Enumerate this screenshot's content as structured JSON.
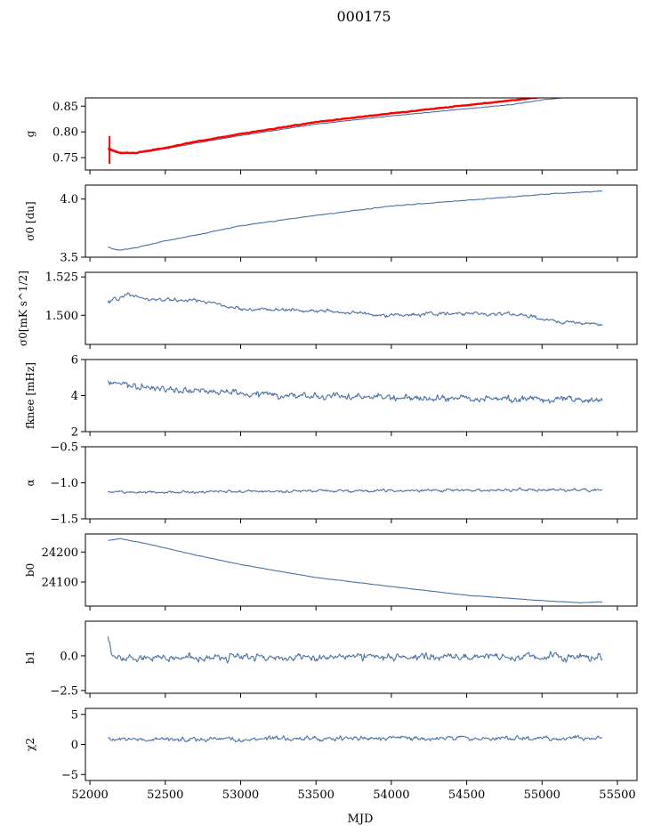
{
  "figure": {
    "title": "000175",
    "xlabel": "MJD"
  },
  "colors": {
    "series": "#4c72a4",
    "fit": "#ff0000",
    "frame": "#000000"
  },
  "chart_data": [
    {
      "type": "line",
      "ylabel": "g",
      "xlim": [
        51970,
        55630
      ],
      "ylim": [
        0.726,
        0.866
      ],
      "yticks": [
        0.75,
        0.8,
        0.85
      ],
      "ytick_labels": [
        "0.75",
        "0.80",
        "0.85"
      ],
      "series": [
        {
          "kind": "data",
          "x": [
            52120,
            52200,
            52300,
            52500,
            52700,
            53000,
            53500,
            54000,
            54500,
            54800,
            55000,
            55200
          ],
          "y": [
            0.765,
            0.758,
            0.758,
            0.767,
            0.778,
            0.793,
            0.815,
            0.831,
            0.845,
            0.853,
            0.862,
            0.868
          ],
          "noise": 0.001
        },
        {
          "kind": "fit",
          "x": [
            52120,
            52200,
            52300,
            52500,
            52700,
            53000,
            53500,
            54000,
            54500,
            54800,
            55000
          ],
          "y": [
            0.768,
            0.759,
            0.759,
            0.769,
            0.781,
            0.796,
            0.819,
            0.836,
            0.852,
            0.861,
            0.868
          ],
          "noise": 0.0012,
          "spike": {
            "x": 52130,
            "low": 0.738,
            "high": 0.792
          }
        }
      ]
    },
    {
      "type": "line",
      "ylabel": "σ0 [du]",
      "xlim": [
        51970,
        55630
      ],
      "ylim": [
        3.5,
        4.12
      ],
      "yticks": [
        3.5,
        4.0
      ],
      "ytick_labels": [
        "3.5",
        "4.0"
      ],
      "series": [
        {
          "kind": "data",
          "x": [
            52120,
            52150,
            52200,
            52300,
            52500,
            52700,
            53000,
            53500,
            54000,
            54500,
            55000,
            55400
          ],
          "y": [
            3.59,
            3.57,
            3.56,
            3.58,
            3.64,
            3.69,
            3.77,
            3.86,
            3.94,
            3.99,
            4.04,
            4.07
          ],
          "noise": 0.006
        }
      ]
    },
    {
      "type": "line",
      "ylabel": "σ0[mK s^1/2]",
      "xlim": [
        51970,
        55630
      ],
      "ylim": [
        1.481,
        1.528
      ],
      "yticks": [
        1.5,
        1.525
      ],
      "ytick_labels": [
        "1.500",
        "1.525"
      ],
      "series": [
        {
          "kind": "data",
          "x": [
            52120,
            52250,
            52400,
            52700,
            53000,
            53500,
            54000,
            54400,
            54800,
            55100,
            55400
          ],
          "y": [
            1.508,
            1.514,
            1.51,
            1.51,
            1.504,
            1.503,
            1.5,
            1.501,
            1.501,
            1.496,
            1.494
          ],
          "noise": 0.0022
        }
      ]
    },
    {
      "type": "line",
      "ylabel": "fknee [mHz]",
      "xlim": [
        51970,
        55630
      ],
      "ylim": [
        2,
        6
      ],
      "yticks": [
        2,
        4,
        6
      ],
      "ytick_labels": [
        "2",
        "4",
        "6"
      ],
      "series": [
        {
          "kind": "data",
          "x": [
            52120,
            52300,
            52600,
            53000,
            53500,
            54000,
            54500,
            55000,
            55400
          ],
          "y": [
            4.7,
            4.5,
            4.3,
            4.1,
            3.95,
            3.9,
            3.8,
            3.8,
            3.7
          ],
          "noise": 0.35
        }
      ]
    },
    {
      "type": "line",
      "ylabel": "α",
      "xlim": [
        51970,
        55630
      ],
      "ylim": [
        -1.5,
        -0.5
      ],
      "yticks": [
        -1.5,
        -1.0,
        -0.5
      ],
      "ytick_labels": [
        "−1.5",
        "−1.0",
        "−0.5"
      ],
      "series": [
        {
          "kind": "data",
          "x": [
            52120,
            53000,
            54000,
            55000,
            55400
          ],
          "y": [
            -1.13,
            -1.12,
            -1.11,
            -1.1,
            -1.1
          ],
          "noise": 0.035
        }
      ]
    },
    {
      "type": "line",
      "ylabel": "b0",
      "xlim": [
        51970,
        55630
      ],
      "ylim": [
        24020,
        24260
      ],
      "yticks": [
        24100,
        24200
      ],
      "ytick_labels": [
        "24100",
        "24200"
      ],
      "series": [
        {
          "kind": "data",
          "x": [
            52120,
            52200,
            52400,
            52700,
            53000,
            53500,
            54000,
            54500,
            55000,
            55250,
            55400
          ],
          "y": [
            24238,
            24245,
            24225,
            24190,
            24158,
            24115,
            24085,
            24056,
            24038,
            24031,
            24034
          ],
          "noise": 1.2
        }
      ]
    },
    {
      "type": "line",
      "ylabel": "b1",
      "xlim": [
        51970,
        55630
      ],
      "ylim": [
        -2.7,
        2.5
      ],
      "yticks": [
        -2.5,
        0.0
      ],
      "ytick_labels": [
        "−2.5",
        "0.0"
      ],
      "series": [
        {
          "kind": "data",
          "x": [
            52120,
            52150,
            52200,
            53000,
            54000,
            55000,
            55400
          ],
          "y": [
            1.2,
            -0.1,
            -0.2,
            -0.1,
            -0.1,
            -0.1,
            -0.1
          ],
          "noise": 0.5
        }
      ]
    },
    {
      "type": "line",
      "ylabel": "χ2",
      "xlim": [
        51970,
        55630
      ],
      "ylim": [
        -6,
        6
      ],
      "yticks": [
        -5,
        0,
        5
      ],
      "ytick_labels": [
        "−5",
        "0",
        "5"
      ],
      "xticks": [
        52000,
        52500,
        53000,
        53500,
        54000,
        54500,
        55000,
        55500
      ],
      "xtick_labels": [
        "52000",
        "52500",
        "53000",
        "53500",
        "54000",
        "54500",
        "55000",
        "55500"
      ],
      "series": [
        {
          "kind": "data",
          "x": [
            52120,
            53000,
            54000,
            55000,
            55400
          ],
          "y": [
            0.8,
            0.9,
            1.0,
            1.0,
            1.2
          ],
          "noise": 0.7
        }
      ]
    }
  ]
}
